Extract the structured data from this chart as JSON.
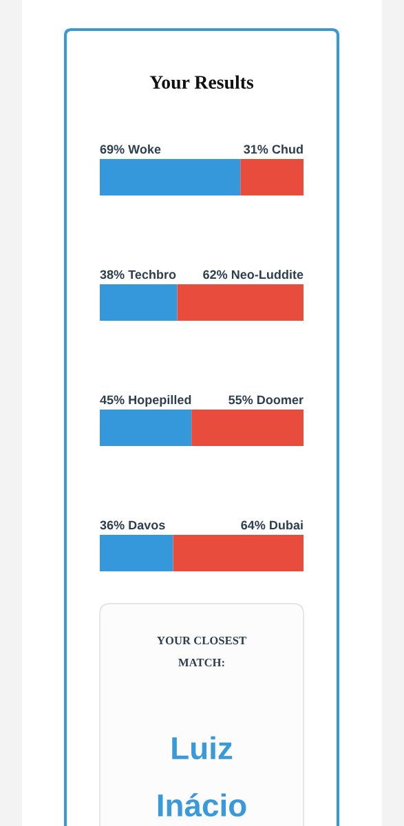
{
  "chart_data": [
    {
      "type": "bar",
      "title": "Your Results",
      "orientation": "horizontal",
      "stacked": true,
      "categories": [
        null,
        null,
        null,
        null
      ],
      "series": [
        {
          "color": "#3498db",
          "values": [
            69,
            38,
            45,
            36
          ],
          "value_labels": [
            "69% Woke",
            "38% Techbro",
            "45% Hopepilled",
            "36% Davos"
          ]
        },
        {
          "color": "#e74c3c",
          "values": [
            31,
            62,
            55,
            64
          ],
          "value_labels": [
            "31% Chud",
            "62% Neo-Luddite",
            "55% Doomer",
            "64% Dubai"
          ]
        }
      ]
    },
    {
      "type": "other",
      "title": "YOUR CLOSEST MATCH:",
      "annotations": [
        "Luiz Inácio"
      ]
    }
  ]
}
